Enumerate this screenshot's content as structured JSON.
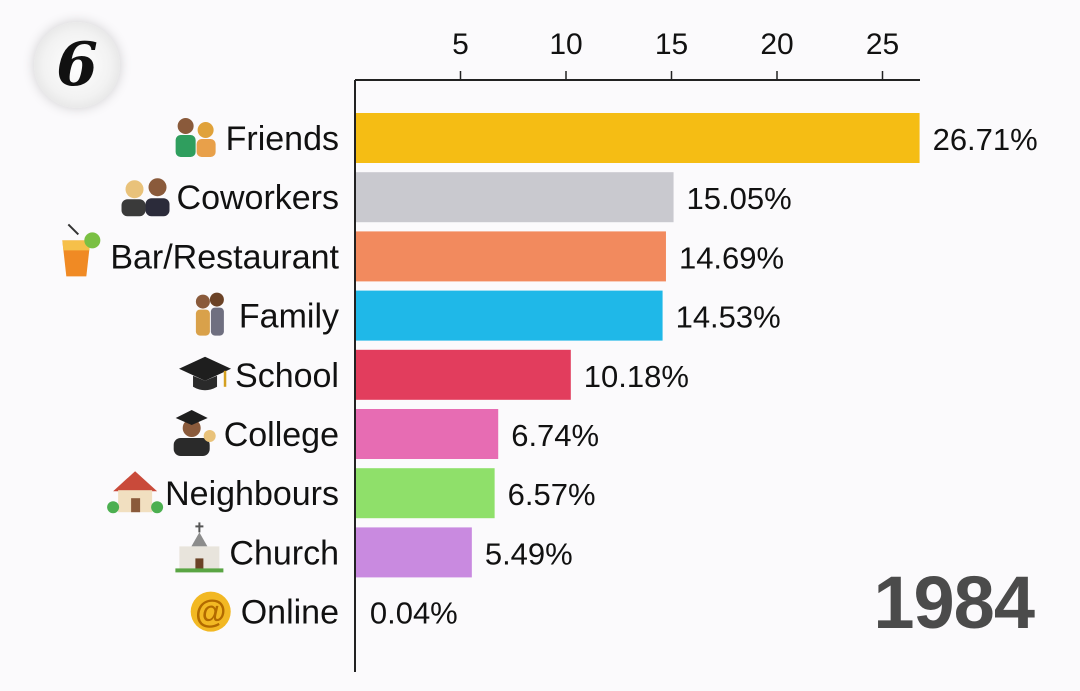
{
  "badge": {
    "text": "6"
  },
  "year_label": "1984",
  "chart_data": {
    "type": "bar",
    "orientation": "horizontal",
    "title": "",
    "xlabel": "",
    "ylabel": "",
    "xlim": [
      0,
      27
    ],
    "x_ticks": [
      5,
      10,
      15,
      20,
      25
    ],
    "x_axis_position": "top",
    "grid": false,
    "legend": "none",
    "categories": [
      "Friends",
      "Coworkers",
      "Bar/Restaurant",
      "Family",
      "School",
      "College",
      "Neighbours",
      "Church",
      "Online"
    ],
    "values": [
      26.71,
      15.05,
      14.69,
      14.53,
      10.18,
      6.74,
      6.57,
      5.49,
      0.04
    ],
    "value_labels": [
      "26.71%",
      "15.05%",
      "14.69%",
      "14.53%",
      "10.18%",
      "6.74%",
      "6.57%",
      "5.49%",
      "0.04%"
    ],
    "colors": [
      "#f5bd14",
      "#c9c9cf",
      "#f28a5e",
      "#1fb8e8",
      "#e23d5d",
      "#e76cb3",
      "#8fe06a",
      "#c98ae0",
      "#aaaaaa"
    ],
    "icons": [
      "couple-icon",
      "coworkers-icon",
      "cocktail-icon",
      "family-icon",
      "graduation-cap-icon",
      "graduate-icon",
      "house-icon",
      "church-icon",
      "at-sign-icon"
    ]
  }
}
